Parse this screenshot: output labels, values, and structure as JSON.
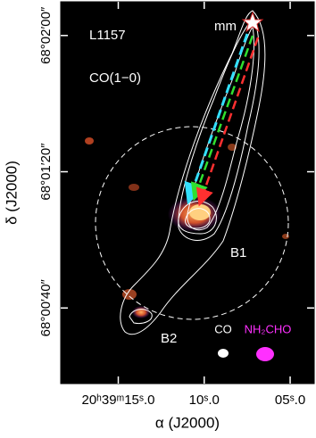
{
  "chart_data": {
    "type": "map",
    "x_label": "α (J2000)",
    "y_label": "δ (J2000)",
    "xlim": [
      18.35,
      3.6
    ],
    "ylim": [
      17.8,
      129.9
    ],
    "xticks": [
      {
        "value": 15,
        "label": "20ʰ39ᵐ15ˢ.0"
      },
      {
        "value": 10,
        "label": "10ˢ.0"
      },
      {
        "value": 5,
        "label": "05ˢ.0"
      }
    ],
    "yticks": [
      {
        "value": 120,
        "label": "68°02′00″"
      },
      {
        "value": 80,
        "label": "68°01′20″"
      },
      {
        "value": 40,
        "label": "68°00′40″"
      }
    ],
    "annotations": {
      "source": "L1157",
      "line": "CO(1−0)",
      "mm": "mm",
      "b1": "B1",
      "b2": "B2",
      "beam_co": "CO",
      "beam_nh2cho": "NH₂CHO"
    }
  }
}
